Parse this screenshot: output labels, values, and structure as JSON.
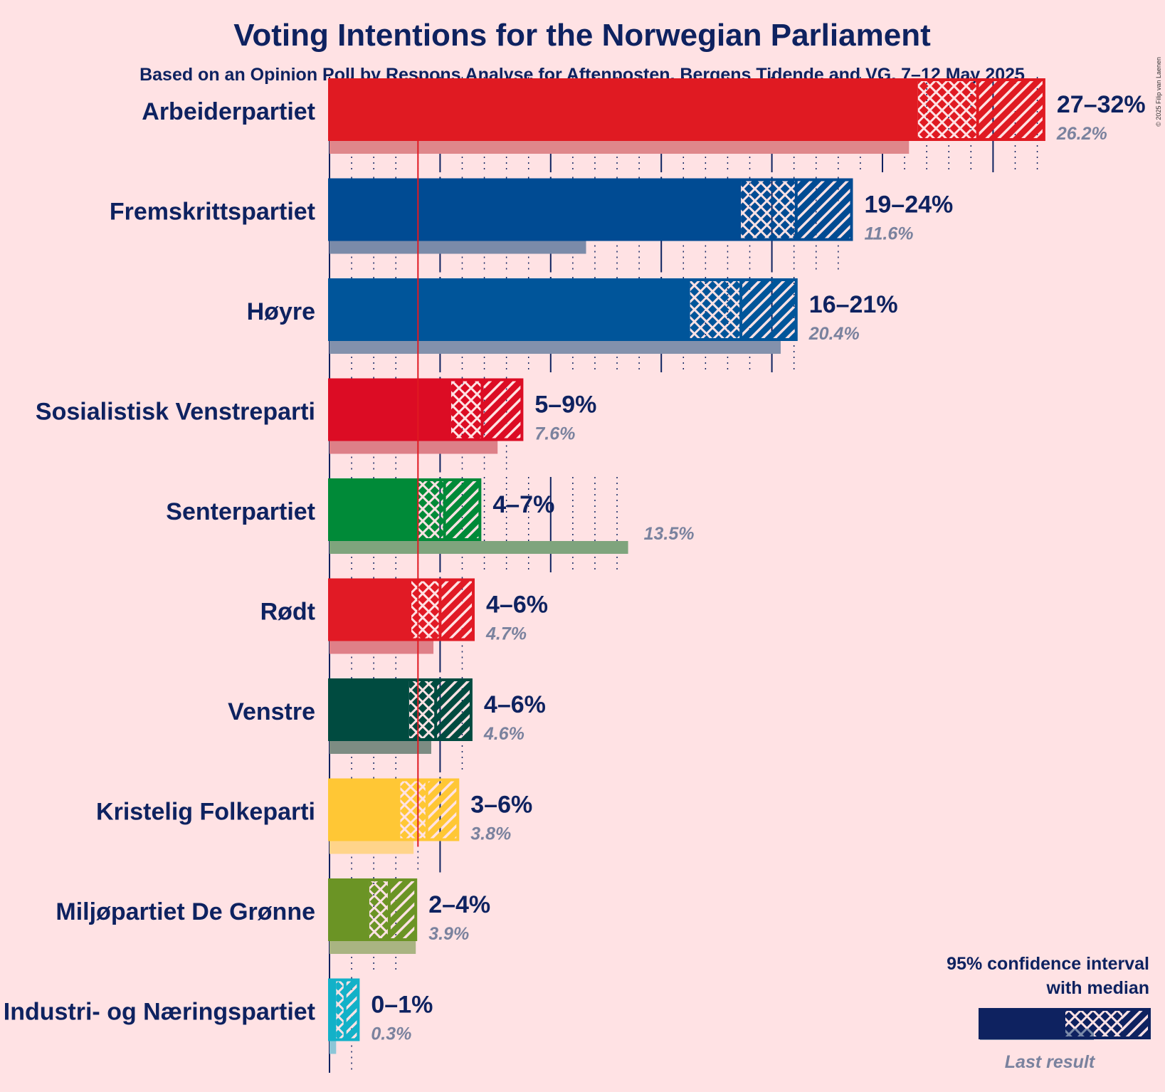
{
  "title": "Voting Intentions for the Norwegian Parliament",
  "subtitle": "Based on an Opinion Poll by Respons Analyse for Aftenposten, Bergens Tidende and VG, 7–12 May 2025",
  "credit": "© 2025 Filip van Laenen",
  "legend": {
    "line1": "95% confidence interval",
    "line2": "with median",
    "last_result": "Last result"
  },
  "chart_data": {
    "type": "bar",
    "orientation": "horizontal",
    "title": "Voting Intentions for the Norwegian Parliament",
    "subtitle": "Based on an Opinion Poll by Respons Analyse for Aftenposten, Bergens Tidende and VG, 7–12 May 2025",
    "xlim": [
      0,
      32.5
    ],
    "threshold": 4,
    "grid": true,
    "legend_position": "bottom-right",
    "parties": [
      {
        "name": "Arbeiderpartiet",
        "range_label": "27–32%",
        "low": 26.6,
        "median": 29.3,
        "high": 32.3,
        "last_result": 26.2,
        "last_label": "26.2%",
        "color": "#E01A22",
        "last_color": "#DF878B"
      },
      {
        "name": "Fremskrittspartiet",
        "range_label": "19–24%",
        "low": 18.6,
        "median": 21.1,
        "high": 23.6,
        "last_result": 11.6,
        "last_label": "11.6%",
        "color": "#004B93",
        "last_color": "#7B8BA9"
      },
      {
        "name": "Høyre",
        "range_label": "16–21%",
        "low": 16.3,
        "median": 18.6,
        "high": 21.1,
        "last_result": 20.4,
        "last_label": "20.4%",
        "color": "#00559A",
        "last_color": "#8391AC"
      },
      {
        "name": "Sosialistisk Venstreparti",
        "range_label": "5–9%",
        "low": 5.5,
        "median": 6.9,
        "high": 8.7,
        "last_result": 7.6,
        "last_label": "7.6%",
        "color": "#DC0C24",
        "last_color": "#DD8088"
      },
      {
        "name": "Senterpartiet",
        "range_label": "4–7%",
        "low": 4.0,
        "median": 5.2,
        "high": 6.8,
        "last_result": 13.5,
        "last_label": "13.5%",
        "color": "#008A38",
        "last_color": "#7FA47D"
      },
      {
        "name": "Rødt",
        "range_label": "4–6%",
        "low": 3.7,
        "median": 5.0,
        "high": 6.5,
        "last_result": 4.7,
        "last_label": "4.7%",
        "color": "#E11A25",
        "last_color": "#DF8088"
      },
      {
        "name": "Venstre",
        "range_label": "4–6%",
        "low": 3.6,
        "median": 4.8,
        "high": 6.4,
        "last_result": 4.6,
        "last_label": "4.6%",
        "color": "#004B40",
        "last_color": "#7D8C83"
      },
      {
        "name": "Kristelig Folkeparti",
        "range_label": "3–6%",
        "low": 3.2,
        "median": 4.4,
        "high": 5.8,
        "last_result": 3.8,
        "last_label": "3.8%",
        "color": "#FFC735",
        "last_color": "#FFD48A"
      },
      {
        "name": "Miljøpartiet De Grønne",
        "range_label": "2–4%",
        "low": 1.8,
        "median": 2.7,
        "high": 3.9,
        "last_result": 3.9,
        "last_label": "3.9%",
        "color": "#6B9425",
        "last_color": "#A9B482"
      },
      {
        "name": "Industri- og Næringspartiet",
        "range_label": "0–1%",
        "low": 0.3,
        "median": 0.7,
        "high": 1.3,
        "last_result": 0.3,
        "last_label": "0.3%",
        "color": "#12B1C8",
        "last_color": "#8CC6D7"
      }
    ]
  }
}
